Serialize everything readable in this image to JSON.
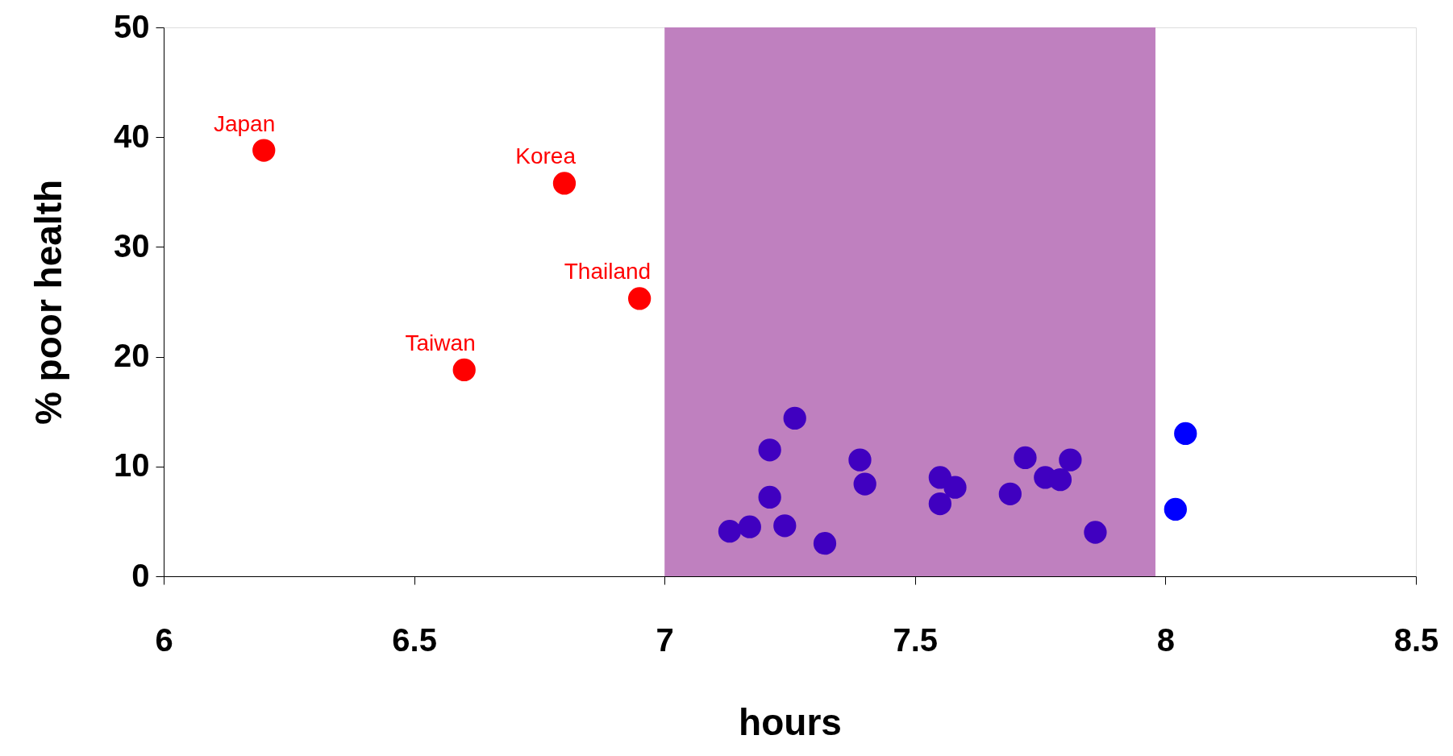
{
  "chart_data": {
    "type": "scatter",
    "xlabel": "hours",
    "ylabel": "% poor health",
    "xlim": [
      6,
      8.5
    ],
    "xticks": [
      6,
      6.5,
      7,
      7.5,
      8,
      8.5
    ],
    "ylim": [
      0,
      50
    ],
    "yticks": [
      0,
      10,
      20,
      30,
      40,
      50
    ],
    "grid": false,
    "marker": "circle",
    "bands": [
      {
        "axis": "x",
        "from": 7,
        "to": 7.98,
        "color": "#bf80bf"
      }
    ],
    "series": [
      {
        "color": "#ff0000",
        "x": [
          6.2,
          6.8,
          6.95,
          6.6
        ],
        "values": [
          38.8,
          35.8,
          25.3,
          18.8
        ]
      },
      {
        "color": "#4000c0",
        "x": [
          7.13,
          7.17,
          7.21,
          7.21,
          7.24,
          7.26,
          7.32,
          7.39,
          7.4,
          7.55,
          7.55,
          7.58,
          7.69,
          7.72,
          7.76,
          7.79,
          7.81,
          7.86
        ],
        "values": [
          4.1,
          4.5,
          7.2,
          11.5,
          4.6,
          14.4,
          3.0,
          10.6,
          8.4,
          9.0,
          6.6,
          8.1,
          7.5,
          10.8,
          9.0,
          8.8,
          10.6,
          4.0
        ]
      },
      {
        "color": "#0000ff",
        "x": [
          8.04,
          8.02
        ],
        "values": [
          13.0,
          6.1
        ]
      }
    ],
    "annotations": [
      {
        "text": "Japan",
        "x": 6.2,
        "y": 38.8
      },
      {
        "text": "Korea",
        "x": 6.8,
        "y": 35.8
      },
      {
        "text": "Thailand",
        "x": 6.95,
        "y": 25.3
      },
      {
        "text": "Taiwan",
        "x": 6.6,
        "y": 18.8
      }
    ]
  }
}
